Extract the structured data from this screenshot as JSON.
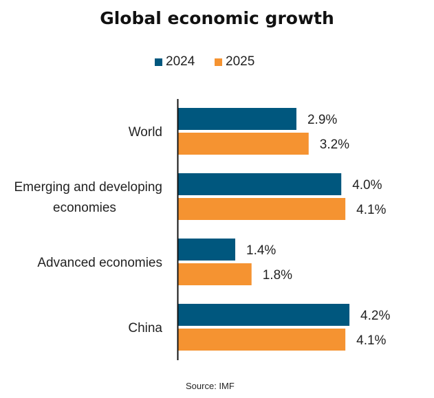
{
  "chart_data": {
    "type": "bar",
    "orientation": "horizontal",
    "title": "Global economic growth",
    "categories": [
      "World",
      "Emerging and developing economies",
      "Advanced economies",
      "China"
    ],
    "category_display": [
      [
        "World"
      ],
      [
        "Emerging and developing",
        "economies"
      ],
      [
        "Advanced economies"
      ],
      [
        "China"
      ]
    ],
    "series": [
      {
        "name": "2024",
        "color": "#00577E",
        "values": [
          2.9,
          4.0,
          1.4,
          4.2
        ]
      },
      {
        "name": "2025",
        "color": "#F59331",
        "values": [
          3.2,
          4.1,
          1.8,
          4.1
        ]
      }
    ],
    "value_labels": [
      [
        "2.9%",
        "4.0%",
        "1.4%",
        "4.2%"
      ],
      [
        "3.2%",
        "4.1%",
        "1.8%",
        "4.1%"
      ]
    ],
    "unit": "%",
    "xlabel": "",
    "ylabel": "",
    "xlim": [
      0,
      6.2
    ],
    "grid": false,
    "legend_position": "top-center",
    "source": "Source: IMF"
  }
}
